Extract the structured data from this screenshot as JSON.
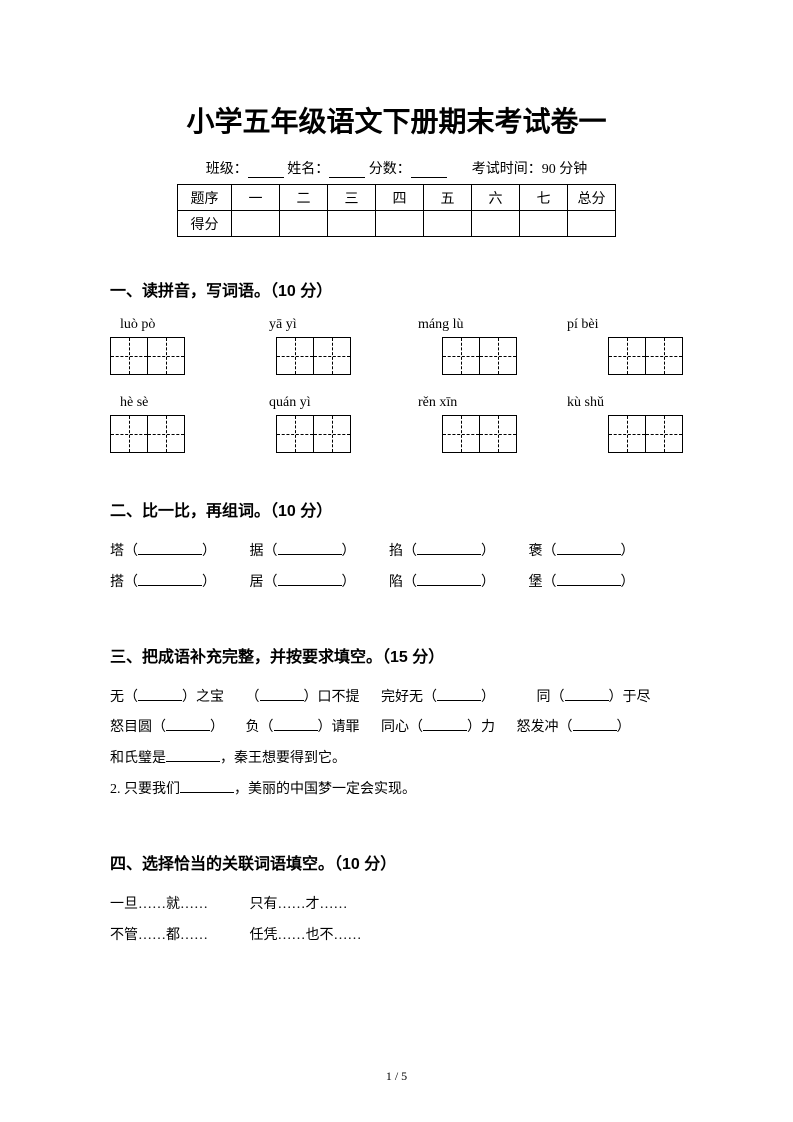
{
  "title": "小学五年级语文下册期末考试卷一",
  "info": {
    "class_label": "班级：",
    "name_label": "姓名：",
    "score_label": "分数：",
    "time_label": "考试时间：90 分钟"
  },
  "score_table": {
    "row1": [
      "题序",
      "一",
      "二",
      "三",
      "四",
      "五",
      "六",
      "七",
      "总分"
    ],
    "row2_label": "得分"
  },
  "section1": {
    "header": "一、读拼音，写词语。（10 分）",
    "pinyin_row1": [
      "luò  pò",
      "yā yì",
      "máng lù",
      "pí bèi"
    ],
    "pinyin_row2": [
      "hè   sè",
      "quán yì",
      "rěn xīn",
      "kù shǔ"
    ]
  },
  "section2": {
    "header": "二、比一比，再组词。（10 分）",
    "pairs": [
      [
        "塔",
        "据",
        "掐",
        "褒"
      ],
      [
        "搭",
        "居",
        "陷",
        "堡"
      ]
    ]
  },
  "section3": {
    "header": "三、把成语补充完整，并按要求填空。（15 分）",
    "line1_parts": [
      "无（",
      "）之宝",
      "（",
      "）口不提",
      "完好无（",
      "）",
      "同（",
      "）于尽"
    ],
    "line2_parts": [
      "怒目圆（",
      "）",
      "负（",
      "）请罪",
      "同心（",
      "）力",
      "怒发冲（",
      "）"
    ],
    "line3_a": "和氏璧是",
    "line3_b": "，秦王想要得到它。",
    "line4_a": "2. 只要我们",
    "line4_b": "，美丽的中国梦一定会实现。"
  },
  "section4": {
    "header": "四、选择恰当的关联词语填空。（10 分）",
    "line1": "一旦……就……",
    "line1b": "只有……才……",
    "line2": "不管……都……",
    "line2b": "任凭……也不……"
  },
  "footer": "1 / 5"
}
